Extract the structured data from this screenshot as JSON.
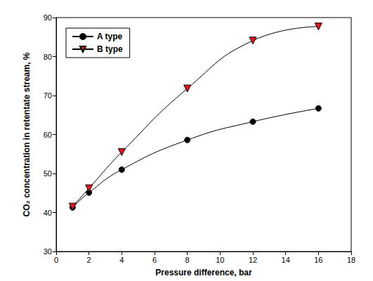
{
  "chart_data": {
    "type": "line",
    "x_label": "Pressure difference, bar",
    "y_label": "CO₂ concentration in retentate stream, %",
    "series": [
      {
        "name": "A type",
        "color": "#000000",
        "marker": "circle",
        "x": [
          1,
          2,
          4,
          8,
          12,
          16
        ],
        "values": [
          41.3,
          45.1,
          51.0,
          58.6,
          63.3,
          66.7
        ]
      },
      {
        "name": "B type",
        "color": "#e8141c",
        "marker": "triangle_down",
        "x": [
          1,
          2,
          4,
          8,
          12,
          16
        ],
        "values": [
          41.5,
          46.2,
          55.5,
          71.8,
          84.1,
          87.7
        ]
      }
    ],
    "xlim": [
      0,
      18
    ],
    "xticks": [
      0,
      2,
      4,
      6,
      8,
      10,
      12,
      14,
      16,
      18
    ],
    "ylim": [
      30,
      90
    ],
    "yticks": [
      30,
      40,
      50,
      60,
      70,
      80,
      90
    ],
    "grid": false,
    "legend": "upper left"
  }
}
